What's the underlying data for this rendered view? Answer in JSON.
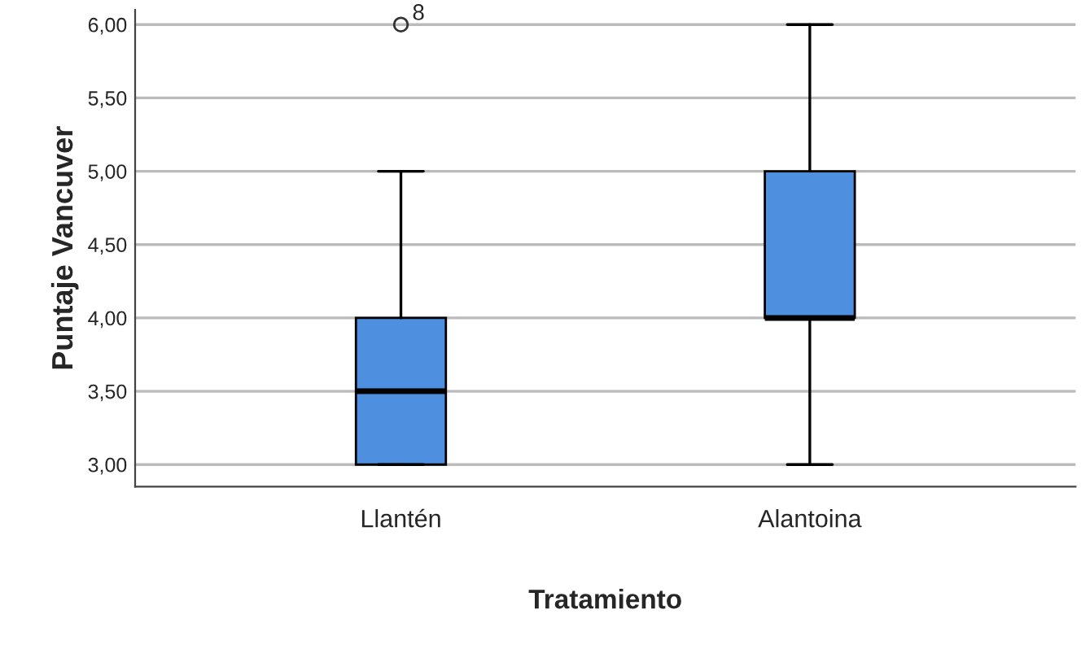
{
  "chart_data": {
    "type": "box",
    "xlabel": "Tratamiento",
    "ylabel": "Puntaje Vancuver",
    "categories": [
      "Llantén",
      "Alantoina"
    ],
    "boxes": [
      {
        "low": 3.0,
        "q1": 3.0,
        "median": 3.5,
        "q3": 4.0,
        "high": 5.0,
        "outliers": [
          6.0
        ]
      },
      {
        "low": 3.0,
        "q1": 4.0,
        "median": 4.0,
        "q3": 5.0,
        "high": 6.0
      }
    ],
    "color": "#4f8fdf",
    "ylim": [
      2.85,
      6.1
    ],
    "yticks": [
      {
        "value": 3.0,
        "label": "3,00"
      },
      {
        "value": 3.5,
        "label": "3,50"
      },
      {
        "value": 4.0,
        "label": "4,00"
      },
      {
        "value": 4.5,
        "label": "4,50"
      },
      {
        "value": 5.0,
        "label": "5,00"
      },
      {
        "value": 5.5,
        "label": "5,50"
      },
      {
        "value": 6.0,
        "label": "6,00"
      }
    ],
    "grid": "y",
    "annotations": [
      "8"
    ]
  }
}
